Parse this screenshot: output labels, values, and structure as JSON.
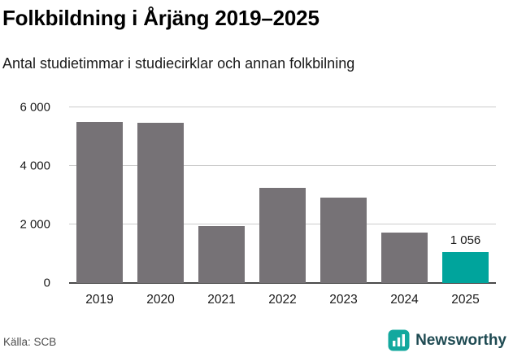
{
  "header": {
    "title": "Folkbildning i Årjäng 2019–2025",
    "subtitle": "Antal studietimmar i studiecirklar och annan folkbilning"
  },
  "chart_data": {
    "type": "bar",
    "categories": [
      "2019",
      "2020",
      "2021",
      "2022",
      "2023",
      "2024",
      "2025"
    ],
    "values": [
      5500,
      5470,
      1950,
      3260,
      2920,
      1730,
      1056
    ],
    "title": "Folkbildning i Årjäng 2019–2025",
    "xlabel": "",
    "ylabel": "",
    "ylim": [
      0,
      6000
    ],
    "yticks": [
      0,
      2000,
      4000,
      6000
    ],
    "ytick_labels": [
      "0",
      "2 000",
      "4 000",
      "6 000"
    ],
    "grid": true,
    "legend": "none",
    "bar_color": "#767276",
    "highlight_color": "#00a49c",
    "highlight_index": 6,
    "data_label": {
      "index": 6,
      "text": "1 056"
    }
  },
  "footer": {
    "source": "Källa: SCB",
    "brand": "Newsworthy"
  },
  "colors": {
    "bar": "#767276",
    "highlight": "#00a49c",
    "brand_icon": "#13a89e",
    "brand_text": "#1e4a52"
  }
}
